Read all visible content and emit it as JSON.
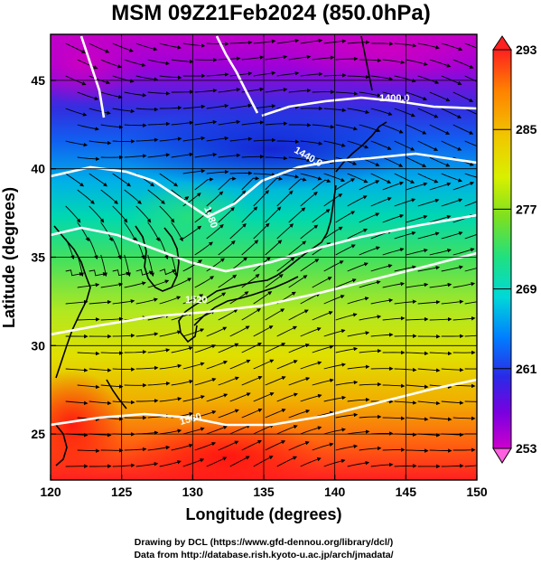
{
  "title": "MSM 09Z21Feb2024 (850.0hPa)",
  "credits": [
    "Drawing by DCL (https://www.gfd-dennou.org/library/dcl/)",
    "Data from http://database.rish.kyoto-u.ac.jp/arch/jmadata/"
  ],
  "chart_data": {
    "type": "heatmap",
    "title": "MSM 09Z21Feb2024 (850.0hPa)",
    "xlabel": "Longitude (degrees)",
    "ylabel": "Latitude  (degrees)",
    "xlim": [
      120,
      150
    ],
    "ylim": [
      22.4,
      47.6
    ],
    "xticks": [
      120,
      125,
      130,
      135,
      140,
      145,
      150
    ],
    "yticks": [
      25,
      30,
      35,
      40,
      45
    ],
    "grid": true,
    "colorbar": {
      "range": [
        253,
        293
      ],
      "tick_labels": [
        293,
        285,
        277,
        269,
        261,
        253
      ],
      "colors": [
        "#cc00cc",
        "#7a00e0",
        "#2a2ae6",
        "#0080ff",
        "#00d8d8",
        "#20e080",
        "#7ce020",
        "#d8f000",
        "#f0c800",
        "#ff8000",
        "#ff2020"
      ]
    },
    "temperature_field_samples": [
      {
        "lon": 122,
        "lat": 46,
        "value": 255
      },
      {
        "lon": 130,
        "lat": 46,
        "value": 254
      },
      {
        "lon": 140,
        "lat": 46,
        "value": 254
      },
      {
        "lon": 148,
        "lat": 46,
        "value": 255
      },
      {
        "lon": 125,
        "lat": 42,
        "value": 259
      },
      {
        "lon": 135,
        "lat": 42,
        "value": 260
      },
      {
        "lon": 145,
        "lat": 41,
        "value": 262
      },
      {
        "lon": 123,
        "lat": 38,
        "value": 268
      },
      {
        "lon": 135,
        "lat": 38,
        "value": 270
      },
      {
        "lon": 145,
        "lat": 38,
        "value": 274
      },
      {
        "lon": 125,
        "lat": 34,
        "value": 276
      },
      {
        "lon": 140,
        "lat": 34,
        "value": 280
      },
      {
        "lon": 125,
        "lat": 30,
        "value": 284
      },
      {
        "lon": 140,
        "lat": 30,
        "value": 283
      },
      {
        "lon": 125,
        "lat": 25,
        "value": 289
      },
      {
        "lon": 135,
        "lat": 24,
        "value": 291
      },
      {
        "lon": 148,
        "lat": 25,
        "value": 285
      }
    ],
    "contours": [
      {
        "label": "1400.0"
      },
      {
        "label": "1440.0"
      },
      {
        "label": "1480"
      },
      {
        "label": "1520"
      },
      {
        "label": "1560"
      }
    ]
  }
}
